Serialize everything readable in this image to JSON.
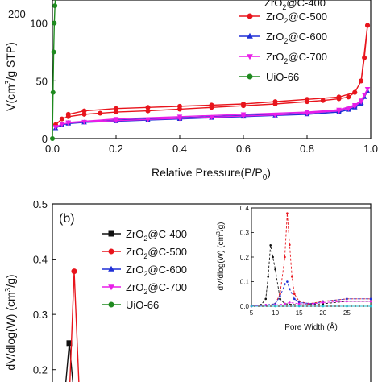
{
  "chart_data": [
    {
      "id": "a",
      "type": "line",
      "xlabel": "Relative Pressure(P/P",
      "xlabel_sub": "0",
      "xlabel_end": ")",
      "ylabel": "V(cm",
      "ylabel_sup": "3",
      "ylabel_end": "/g STP)",
      "xlim": [
        0.0,
        1.0
      ],
      "ylim": [
        0,
        120
      ],
      "xticks": [
        "0.0",
        "0.2",
        "0.4",
        "0.6",
        "0.8",
        "1.0"
      ],
      "yticks": [
        "0",
        "50",
        "100"
      ],
      "ytick_top_partial": "200",
      "legend_top_partial": "ZrO2@C-400",
      "legend_position": "top-right",
      "series": [
        {
          "name": "ZrO₂@C-500",
          "color": "#e8141c",
          "marker": "circle",
          "x": [
            0.01,
            0.03,
            0.05,
            0.1,
            0.15,
            0.2,
            0.3,
            0.4,
            0.5,
            0.6,
            0.7,
            0.8,
            0.85,
            0.9,
            0.93,
            0.95,
            0.97,
            0.98,
            0.99,
            0.99,
            0.97,
            0.95,
            0.9,
            0.8,
            0.7,
            0.6,
            0.5,
            0.4,
            0.3,
            0.2,
            0.1,
            0.05
          ],
          "y": [
            12,
            17,
            19,
            21,
            22,
            23,
            24,
            25.5,
            27,
            28.5,
            30,
            32,
            33,
            34.5,
            36,
            40,
            50,
            70,
            98,
            98,
            50,
            40,
            36,
            34,
            32,
            30,
            29,
            28,
            27,
            26,
            24,
            21
          ]
        },
        {
          "name": "ZrO₂@C-600",
          "color": "#1f2fd6",
          "marker": "triangle",
          "x": [
            0.01,
            0.03,
            0.05,
            0.1,
            0.2,
            0.3,
            0.4,
            0.5,
            0.6,
            0.7,
            0.8,
            0.9,
            0.93,
            0.95,
            0.97,
            0.98,
            0.99,
            0.97,
            0.95,
            0.9,
            0.8,
            0.6,
            0.4,
            0.2,
            0.05
          ],
          "y": [
            9,
            12,
            13,
            14,
            15,
            16,
            17,
            18,
            19,
            20,
            21,
            23,
            25,
            27,
            30,
            36,
            41,
            31,
            28,
            24,
            22,
            20,
            18,
            16,
            13.5
          ]
        },
        {
          "name": "ZrO₂@C-700",
          "color": "#e81ee8",
          "marker": "triangle-down",
          "x": [
            0.01,
            0.03,
            0.05,
            0.1,
            0.2,
            0.3,
            0.4,
            0.5,
            0.6,
            0.7,
            0.8,
            0.9,
            0.93,
            0.95,
            0.97,
            0.98,
            0.99,
            0.97,
            0.95,
            0.9,
            0.8,
            0.6,
            0.4,
            0.2,
            0.05
          ],
          "y": [
            10,
            12.5,
            13.5,
            14.5,
            15.5,
            16.5,
            17.5,
            18.5,
            19.5,
            20.5,
            22,
            24,
            26,
            28,
            32,
            38,
            43,
            33,
            29,
            25,
            23,
            21,
            19,
            17,
            14
          ]
        },
        {
          "name": "UiO-66",
          "color": "#1f8a1f",
          "marker": "circle",
          "x": [
            0.0,
            0.002,
            0.004,
            0.006,
            0.008,
            0.01
          ],
          "y": [
            0,
            40,
            75,
            100,
            115,
            125
          ]
        }
      ]
    },
    {
      "id": "b",
      "type": "line",
      "panel_label": "(b)",
      "ylabel": "dV/dlog(W) (cm",
      "ylabel_sup": "3",
      "ylabel_end": "/g)",
      "ylim": [
        0.15,
        0.5
      ],
      "yticks": [
        "0.2",
        "0.3",
        "0.4",
        "0.5"
      ],
      "legend_position": "top-left",
      "series": [
        {
          "name": "ZrO₂@C-400",
          "color": "#111111",
          "marker": "square",
          "x": [
            1,
            2,
            3
          ],
          "y": [
            0.15,
            0.248,
            0.15
          ]
        },
        {
          "name": "ZrO₂@C-500",
          "color": "#e8141c",
          "marker": "circle",
          "x": [
            2,
            3,
            4
          ],
          "y": [
            0.15,
            0.378,
            0.172
          ]
        },
        {
          "name": "ZrO₂@C-600",
          "color": "#1f2fd6",
          "marker": "triangle",
          "x": [],
          "y": []
        },
        {
          "name": "ZrO₂@C-700",
          "color": "#e81ee8",
          "marker": "triangle-down",
          "x": [],
          "y": []
        },
        {
          "name": "UiO-66",
          "color": "#1f8a1f",
          "marker": "circle",
          "x": [],
          "y": []
        }
      ],
      "inset": {
        "xlabel": "Pore Width (Å)",
        "ylabel": "dV/dlog(W) (cm",
        "ylabel_sup": "3",
        "ylabel_end": "/g)",
        "xlim": [
          5,
          30
        ],
        "ylim": [
          0,
          0.4
        ],
        "xticks": [
          "5",
          "10",
          "15",
          "20",
          "25"
        ],
        "yticks": [
          "0.0",
          "0.1",
          "0.2",
          "0.3",
          "0.4"
        ],
        "series": [
          {
            "color": "#111111",
            "x": [
              5,
              7,
              8,
              8.5,
              9,
              9.5,
              10,
              11,
              12,
              15,
              20,
              25,
              30
            ],
            "y": [
              0,
              0.005,
              0.03,
              0.12,
              0.248,
              0.2,
              0.15,
              0.03,
              0.01,
              0.005,
              0.01,
              0.02,
              0.02
            ]
          },
          {
            "color": "#e8141c",
            "x": [
              5,
              8,
              10,
              11,
              12,
              12.5,
              13,
              13.5,
              14,
              15,
              17,
              20,
              25,
              30
            ],
            "y": [
              0,
              0.005,
              0.01,
              0.05,
              0.2,
              0.378,
              0.25,
              0.12,
              0.05,
              0.02,
              0.01,
              0.02,
              0.03,
              0.03
            ]
          },
          {
            "color": "#1f2fd6",
            "x": [
              5,
              8,
              10,
              11,
              12,
              12.5,
              13,
              14,
              15,
              18,
              20,
              25,
              30
            ],
            "y": [
              0,
              0.005,
              0.01,
              0.04,
              0.09,
              0.1,
              0.07,
              0.03,
              0.015,
              0.01,
              0.02,
              0.03,
              0.03
            ]
          },
          {
            "color": "#e81ee8",
            "x": [
              5,
              8,
              10,
              12,
              13,
              15,
              18,
              20,
              25,
              30
            ],
            "y": [
              0,
              0.005,
              0.005,
              0.01,
              0.015,
              0.01,
              0.01,
              0.015,
              0.02,
              0.02
            ]
          },
          {
            "color": "#20c0d0",
            "x": [
              5,
              10,
              15,
              20,
              25,
              30
            ],
            "y": [
              0,
              0,
              0,
              0,
              0,
              0
            ]
          }
        ]
      }
    }
  ]
}
